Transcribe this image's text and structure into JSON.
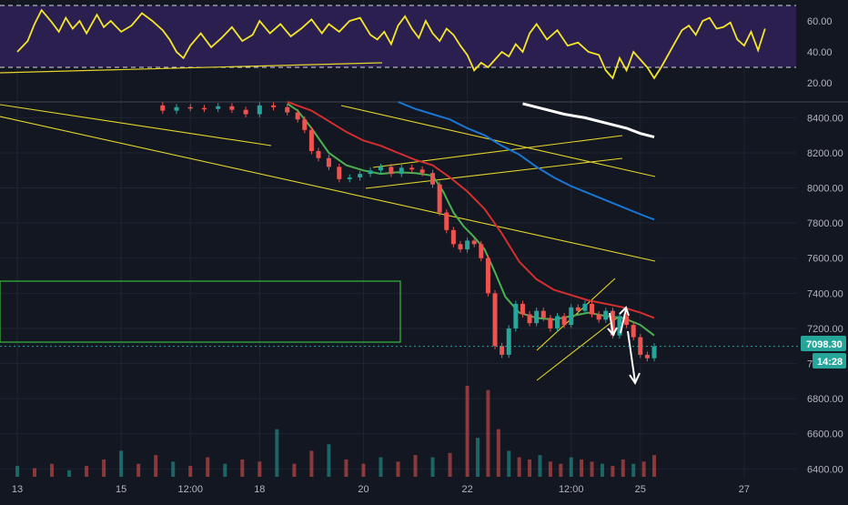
{
  "colors": {
    "background": "#131722",
    "grid": "#1f2433",
    "axis_text": "#b2b5be",
    "rsi_band": "#2a1f4f",
    "rsi_line": "#f5e62b",
    "rsi_band_line": "#d8d8d8",
    "up": "#26a69a",
    "down": "#ef5350",
    "sma_fast": "#4caf50",
    "sma_red": "#d32f2f",
    "sma_blue": "#1976d2",
    "sma_white": "#ffffff",
    "trendline": "#e5d52a",
    "box": "#36b83c",
    "price_tag_bg": "#26a69a",
    "arrow": "#ffffff"
  },
  "price_tag": {
    "price": "7098.30",
    "countdown": "14:28"
  },
  "chart_data": [
    {
      "type": "line",
      "title": "",
      "ylabel": "",
      "y_ticks": [
        "60.00",
        "40.00",
        "20.00"
      ],
      "y_tick_values": [
        60,
        40,
        20
      ],
      "ylim": [
        10,
        70
      ],
      "band": [
        30,
        70
      ],
      "series": [
        {
          "x": [
            0,
            0.3,
            0.5,
            0.7,
            1,
            1.2,
            1.4,
            1.6,
            1.8,
            2.0,
            2.3,
            2.5,
            2.7,
            3,
            3.3,
            3.6,
            3.9,
            4.2,
            4.4,
            4.6,
            4.8,
            5,
            5.3,
            5.6,
            5.9,
            6.2,
            6.5,
            6.8,
            7,
            7.3,
            7.6,
            7.9,
            8.2,
            8.5,
            8.8,
            9,
            9.3,
            9.6,
            9.9,
            10.2,
            10.4,
            10.6,
            10.8,
            11,
            11.2,
            11.4,
            11.6,
            11.8,
            12,
            12.2,
            12.4,
            12.6,
            12.8,
            13,
            13.2,
            13.4,
            13.6,
            13.8,
            14,
            14.2,
            14.4,
            14.6,
            14.8,
            15,
            15.3,
            15.6,
            15.9,
            16.2,
            16.5,
            16.8,
            17,
            17.2,
            17.4,
            17.6,
            17.8,
            18,
            18.2,
            18.4,
            18.6,
            18.8,
            19.0,
            19.2,
            19.4,
            19.6,
            19.8,
            20.0,
            20.2,
            20.4,
            20.6,
            20.8,
            21.0,
            21.2,
            21.4,
            21.6
          ],
          "values": [
            40,
            47,
            58,
            67,
            59,
            53,
            62,
            55,
            60,
            52,
            64,
            56,
            60,
            53,
            57,
            65,
            60,
            54,
            48,
            40,
            36,
            44,
            52,
            43,
            49,
            56,
            47,
            51,
            60,
            52,
            58,
            50,
            55,
            61,
            52,
            58,
            53,
            60,
            62,
            51,
            48,
            53,
            45,
            57,
            63,
            55,
            49,
            60,
            52,
            47,
            55,
            51,
            44,
            38,
            28,
            33,
            30,
            35,
            40,
            37,
            45,
            40,
            52,
            58,
            48,
            54,
            44,
            46,
            40,
            38,
            28,
            23,
            36,
            28,
            40,
            35,
            30,
            23,
            30,
            38,
            46,
            54,
            57,
            51,
            60,
            62,
            55,
            56,
            59,
            48,
            44,
            53,
            41,
            55
          ]
        }
      ]
    },
    {
      "type": "candlestick",
      "title": "",
      "xlabel": "",
      "ylabel": "",
      "x_ticks": [
        "13",
        "15",
        "12:00",
        "18",
        "20",
        "22",
        "12:00",
        "25",
        "27"
      ],
      "x_tick_values": [
        0,
        3,
        5,
        7,
        10,
        13,
        16,
        18,
        21
      ],
      "xlim": [
        -0.5,
        22.5
      ],
      "y_ticks": [
        "8400.00",
        "8200.00",
        "8000.00",
        "7800.00",
        "7600.00",
        "7400.00",
        "7200.00",
        "7000.00",
        "6800.00",
        "6600.00",
        "6400.00"
      ],
      "y_tick_values": [
        8400,
        8200,
        8000,
        7800,
        7600,
        7400,
        7200,
        7000,
        6800,
        6600,
        6400
      ],
      "ylim": [
        6355,
        8490
      ],
      "price_path": {
        "x": [
          3.8,
          4.2,
          4.6,
          5.0,
          5.4,
          5.8,
          6.2,
          6.6,
          7.0,
          7.4,
          7.8,
          8.1,
          8.3,
          8.5,
          8.7,
          9.0,
          9.3,
          9.6,
          9.9,
          10.2,
          10.5,
          10.8,
          11.1,
          11.4,
          11.7,
          12.0,
          12.2,
          12.4,
          12.6,
          12.8,
          13.0,
          13.2,
          13.4,
          13.6,
          13.8,
          14.0,
          14.2,
          14.4,
          14.6,
          14.8,
          15.0,
          15.2,
          15.4,
          15.6,
          15.8,
          16.0,
          16.2,
          16.4,
          16.6,
          16.8,
          17.0,
          17.2,
          17.4,
          17.6,
          17.8,
          18.0,
          18.2,
          18.4
        ],
        "values": [
          8470,
          8440,
          8460,
          8455,
          8450,
          8465,
          8445,
          8420,
          8470,
          8460,
          8430,
          8390,
          8330,
          8210,
          8170,
          8120,
          8050,
          8060,
          8080,
          8100,
          8120,
          8080,
          8115,
          8105,
          8085,
          8020,
          7860,
          7760,
          7680,
          7650,
          7700,
          7680,
          7600,
          7400,
          7100,
          7050,
          7200,
          7340,
          7280,
          7230,
          7300,
          7260,
          7200,
          7270,
          7220,
          7320,
          7300,
          7340,
          7280,
          7250,
          7300,
          7160,
          7270,
          7220,
          7150,
          7050,
          7030,
          7098
        ]
      },
      "volume": {
        "x": [
          0,
          0.5,
          1,
          1.5,
          2,
          2.5,
          3,
          3.5,
          4,
          4.5,
          5,
          5.5,
          6,
          6.5,
          7,
          7.5,
          8,
          8.5,
          9,
          9.5,
          10,
          10.5,
          11,
          11.5,
          12,
          12.5,
          13,
          13.3,
          13.6,
          13.9,
          14.2,
          14.5,
          14.8,
          15.1,
          15.4,
          15.7,
          16,
          16.3,
          16.6,
          16.9,
          17.2,
          17.5,
          17.8,
          18.1,
          18.4
        ],
        "values": [
          5,
          4,
          6,
          3,
          5,
          8,
          12,
          6,
          10,
          7,
          5,
          9,
          6,
          8,
          7,
          22,
          6,
          12,
          15,
          8,
          6,
          9,
          7,
          10,
          9,
          11,
          42,
          18,
          40,
          22,
          12,
          9,
          8,
          10,
          7,
          6,
          9,
          8,
          7,
          6,
          5,
          8,
          6,
          7,
          10
        ]
      },
      "series": [
        {
          "name": "",
          "color_key": "sma_fast",
          "x": [
            7.8,
            8.1,
            8.5,
            9.0,
            9.5,
            10.0,
            10.5,
            11.0,
            11.5,
            12.0,
            12.3,
            12.6,
            12.9,
            13.2,
            13.5,
            13.8,
            14.1,
            14.5,
            15.0,
            15.5,
            16.0,
            16.5,
            17.0,
            17.5,
            18.0,
            18.4
          ],
          "values": [
            8480,
            8440,
            8340,
            8200,
            8130,
            8100,
            8080,
            8090,
            8085,
            8070,
            7980,
            7860,
            7780,
            7720,
            7650,
            7520,
            7380,
            7290,
            7260,
            7250,
            7270,
            7290,
            7270,
            7260,
            7220,
            7160
          ]
        },
        {
          "name": "",
          "color_key": "sma_red",
          "x": [
            7.8,
            8.5,
            9.0,
            9.5,
            10.0,
            10.5,
            11.0,
            11.5,
            12.0,
            12.5,
            13.0,
            13.5,
            14.0,
            14.5,
            15.0,
            15.5,
            16.0,
            16.5,
            17.0,
            17.5,
            18.0,
            18.4
          ],
          "values": [
            8490,
            8440,
            8380,
            8320,
            8270,
            8240,
            8200,
            8160,
            8130,
            8060,
            7980,
            7880,
            7740,
            7580,
            7480,
            7420,
            7390,
            7360,
            7340,
            7320,
            7290,
            7260
          ]
        },
        {
          "name": "",
          "color_key": "sma_blue",
          "x": [
            11.0,
            11.5,
            12.0,
            12.5,
            13.0,
            13.5,
            14.0,
            14.5,
            15.0,
            15.5,
            16.0,
            16.5,
            17.0,
            17.5,
            18.0,
            18.4
          ],
          "values": [
            8490,
            8450,
            8420,
            8390,
            8340,
            8300,
            8240,
            8190,
            8120,
            8060,
            8010,
            7970,
            7930,
            7890,
            7850,
            7820
          ]
        },
        {
          "name": "",
          "color_key": "sma_white",
          "x": [
            14.6,
            15.2,
            15.8,
            16.4,
            17.0,
            17.6,
            18.0,
            18.4
          ],
          "values": [
            8480,
            8450,
            8420,
            8400,
            8370,
            8340,
            8310,
            8290
          ]
        }
      ]
    }
  ]
}
